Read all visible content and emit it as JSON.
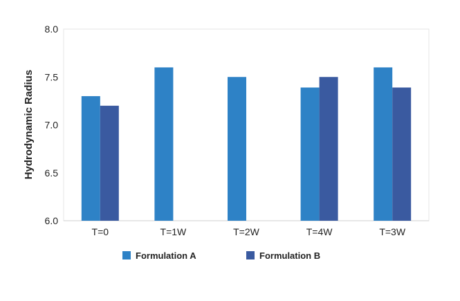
{
  "chart_data": {
    "type": "bar",
    "ylabel": "Hydrodynamic Radius",
    "xlabel": "",
    "title": "",
    "categories": [
      "T=0",
      "T=1W",
      "T=2W",
      "T=4W",
      "T=3W"
    ],
    "series": [
      {
        "name": "Formulation A",
        "color": "#2e82c6",
        "values": [
          7.3,
          7.6,
          7.5,
          7.39,
          7.6
        ]
      },
      {
        "name": "Formulation B",
        "color": "#3a5aa0",
        "values": [
          7.2,
          null,
          null,
          7.5,
          7.39
        ]
      }
    ],
    "yticks": [
      "6.0",
      "6.5",
      "7.0",
      "7.5",
      "8.0"
    ],
    "ylim": [
      6.0,
      8.0
    ],
    "grid": false,
    "legend_position": "bottom"
  }
}
